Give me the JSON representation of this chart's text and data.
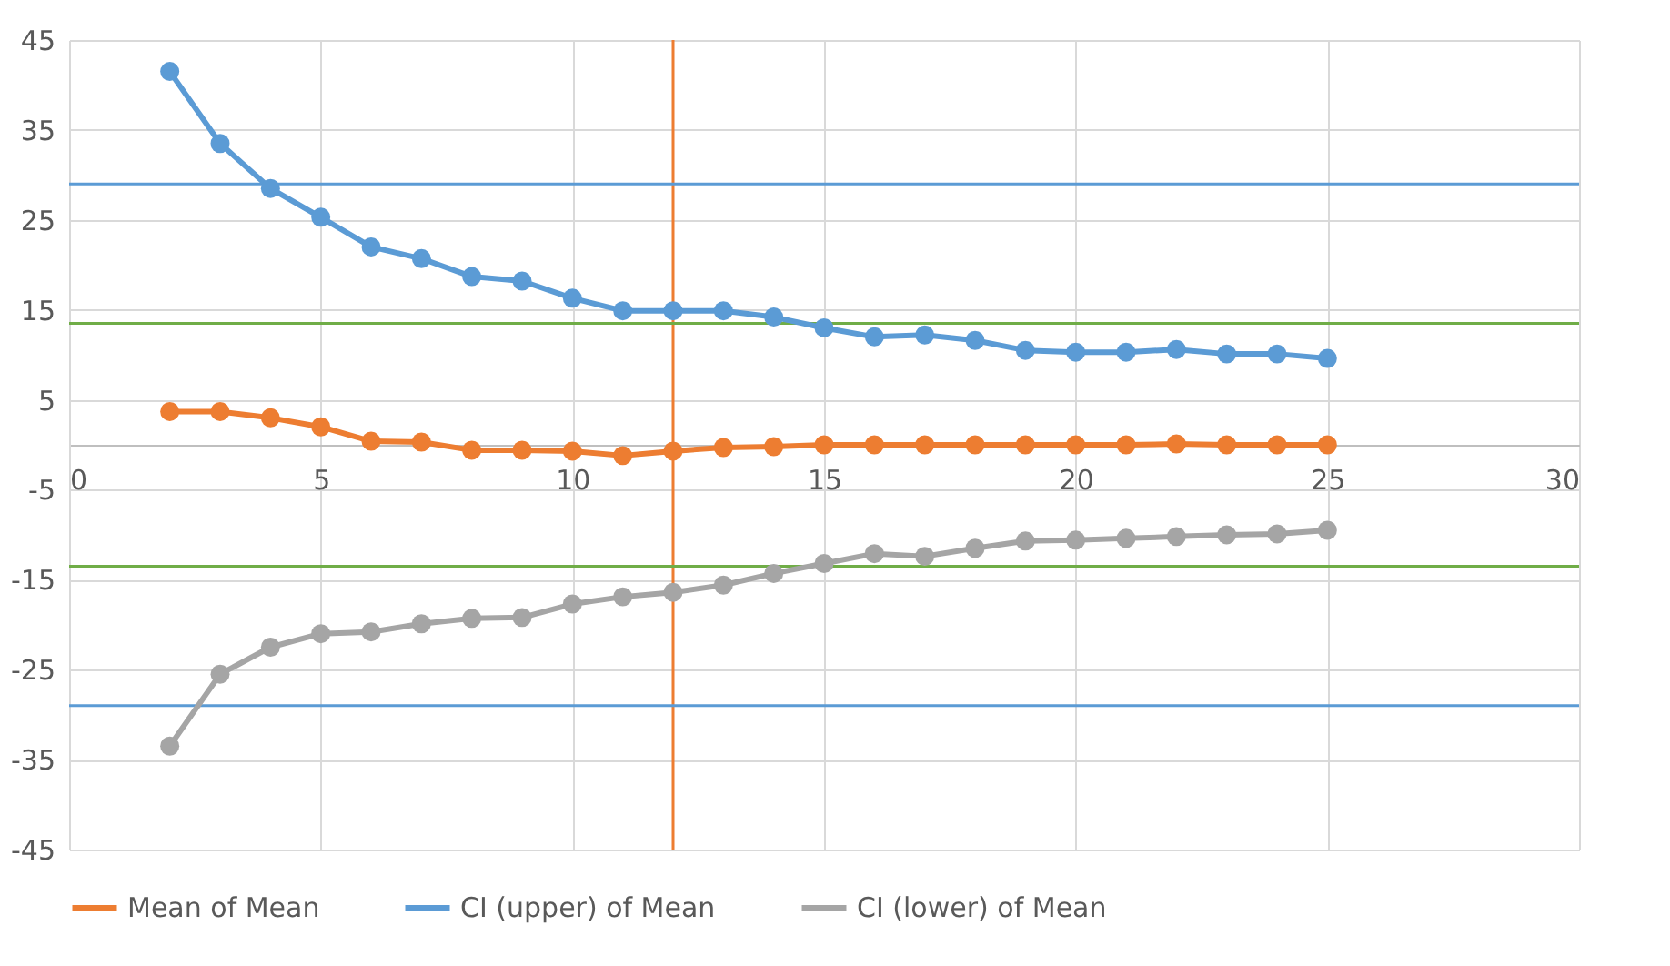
{
  "chart_data": {
    "type": "line",
    "marker": "circle",
    "grid": true,
    "legend": "bottom",
    "x": [
      2,
      3,
      4,
      5,
      6,
      7,
      8,
      9,
      10,
      11,
      12,
      13,
      14,
      15,
      16,
      17,
      18,
      19,
      20,
      21,
      22,
      23,
      24,
      25
    ],
    "xlim": [
      0,
      30
    ],
    "xticks": [
      0,
      5,
      10,
      15,
      20,
      25,
      30
    ],
    "ylim": [
      -45,
      45
    ],
    "yticks": [
      -45,
      -35,
      -25,
      -15,
      -5,
      5,
      15,
      25,
      35,
      45
    ],
    "series": [
      {
        "name": "Mean of Mean",
        "color": "#ed7d31",
        "values": [
          3.7,
          3.7,
          3,
          2,
          0.4,
          0.3,
          -0.6,
          -0.6,
          -0.7,
          -1.2,
          -0.7,
          -0.3,
          -0.2,
          0,
          0,
          0,
          0,
          0,
          0,
          0,
          0.1,
          0,
          0,
          0
        ]
      },
      {
        "name": "CI (upper) of Mean",
        "color": "#5b9bd5",
        "values": [
          41.5,
          33.5,
          28.5,
          25.3,
          22,
          20.7,
          18.7,
          18.2,
          16.3,
          14.9,
          14.9,
          14.9,
          14.2,
          13,
          12,
          12.2,
          11.6,
          10.5,
          10.3,
          10.3,
          10.6,
          10.1,
          10.1,
          9.6
        ]
      },
      {
        "name": "CI (lower) of Mean",
        "color": "#a5a5a5",
        "values": [
          -33.5,
          -25.5,
          -22.5,
          -21,
          -20.8,
          -19.9,
          -19.3,
          -19.2,
          -17.7,
          -16.9,
          -16.4,
          -15.6,
          -14.3,
          -13.2,
          -12.1,
          -12.4,
          -11.5,
          -10.7,
          -10.6,
          -10.4,
          -10.2,
          -10,
          -9.9,
          -9.5
        ]
      }
    ],
    "ref_lines": [
      {
        "axis": "y",
        "value": 29,
        "color": "#5b9bd5"
      },
      {
        "axis": "y",
        "value": -29,
        "color": "#5b9bd5"
      },
      {
        "axis": "y",
        "value": 13.5,
        "color": "#70ad47"
      },
      {
        "axis": "y",
        "value": -13.5,
        "color": "#70ad47"
      },
      {
        "axis": "x",
        "value": 12,
        "color": "#ed7d31"
      }
    ]
  }
}
